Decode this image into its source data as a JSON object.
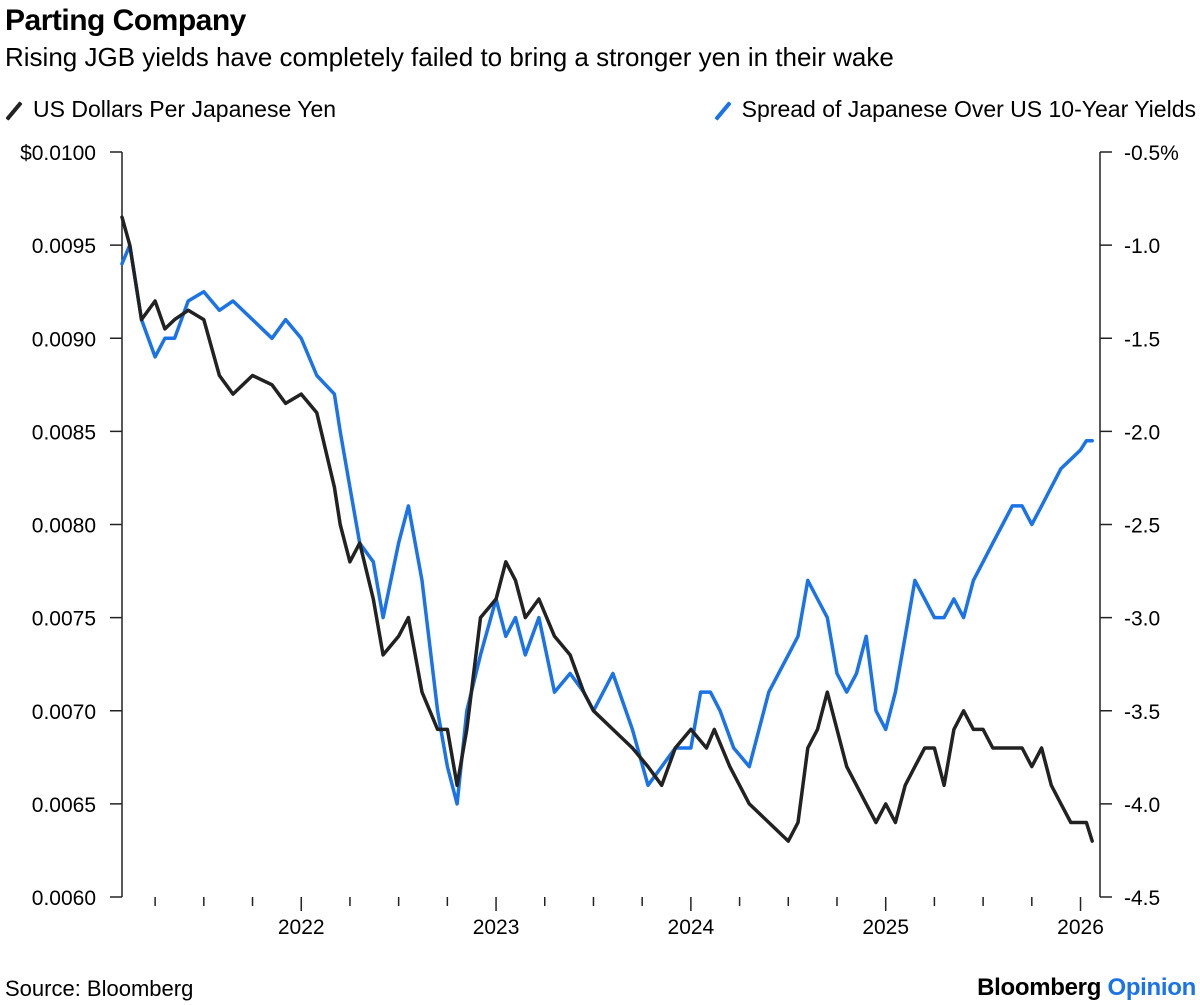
{
  "header": {
    "title": "Parting Company",
    "subtitle": "Rising JGB yields have completely failed to bring a stronger yen in their wake"
  },
  "footer": {
    "source": "Source: Bloomberg",
    "brand_main": "Bloomberg",
    "brand_accent": "Opinion"
  },
  "colors": {
    "series_left": "#222222",
    "series_right": "#1a73e8",
    "axis": "#222222"
  },
  "chart_data": {
    "type": "line",
    "title": "Parting Company",
    "subtitle": "Rising JGB yields have completely failed to bring a stronger yen in their wake",
    "x_domain": [
      2021.08,
      2026.1
    ],
    "x_ticks": [
      2022,
      2023,
      2024,
      2025,
      2026
    ],
    "x_tick_labels": [
      "2022",
      "2023",
      "2024",
      "2025",
      "2026"
    ],
    "x_minor_ticks": [
      2021.25,
      2021.5,
      2021.75,
      2022.25,
      2022.5,
      2022.75,
      2023.25,
      2023.5,
      2023.75,
      2024.25,
      2024.5,
      2024.75,
      2025.25,
      2025.5,
      2025.75
    ],
    "y_left": {
      "label": "US Dollars Per Japanese Yen",
      "range": [
        0.006,
        0.01
      ],
      "ticks": [
        0.006,
        0.0065,
        0.007,
        0.0075,
        0.008,
        0.0085,
        0.009,
        0.0095,
        0.01
      ],
      "tick_labels": [
        "0.0060",
        "0.0065",
        "0.0070",
        "0.0075",
        "0.0080",
        "0.0085",
        "0.0090",
        "0.0095",
        "$0.0100"
      ]
    },
    "y_right": {
      "label": "Spread of Japanese Over US 10-Year Yields",
      "range": [
        -4.5,
        -0.5
      ],
      "ticks": [
        -4.5,
        -4.0,
        -3.5,
        -3.0,
        -2.5,
        -2.0,
        -1.5,
        -1.0,
        -0.5
      ],
      "tick_labels": [
        "-4.5",
        "-4.0",
        "-3.5",
        "-3.0",
        "-2.5",
        "-2.0",
        "-1.5",
        "-1.0",
        "-0.5%"
      ]
    },
    "series": [
      {
        "name": "US Dollars Per Japanese Yen",
        "axis": "left",
        "color": "#222222",
        "x": [
          2021.08,
          2021.12,
          2021.18,
          2021.25,
          2021.3,
          2021.35,
          2021.42,
          2021.5,
          2021.58,
          2021.65,
          2021.75,
          2021.85,
          2021.92,
          2022.0,
          2022.08,
          2022.17,
          2022.2,
          2022.25,
          2022.3,
          2022.37,
          2022.42,
          2022.5,
          2022.55,
          2022.62,
          2022.7,
          2022.75,
          2022.8,
          2022.85,
          2022.92,
          2023.0,
          2023.05,
          2023.1,
          2023.15,
          2023.22,
          2023.3,
          2023.38,
          2023.45,
          2023.5,
          2023.6,
          2023.7,
          2023.78,
          2023.85,
          2023.92,
          2024.0,
          2024.08,
          2024.12,
          2024.2,
          2024.3,
          2024.4,
          2024.5,
          2024.55,
          2024.6,
          2024.65,
          2024.7,
          2024.75,
          2024.8,
          2024.85,
          2024.9,
          2024.95,
          2025.0,
          2025.05,
          2025.1,
          2025.15,
          2025.2,
          2025.25,
          2025.3,
          2025.35,
          2025.4,
          2025.45,
          2025.5,
          2025.55,
          2025.6,
          2025.65,
          2025.7,
          2025.75,
          2025.8,
          2025.85,
          2025.9,
          2025.95,
          2026.0,
          2026.03,
          2026.06
        ],
        "values": [
          0.00965,
          0.0095,
          0.0091,
          0.0092,
          0.00905,
          0.0091,
          0.00915,
          0.0091,
          0.0088,
          0.0087,
          0.0088,
          0.00875,
          0.00865,
          0.0087,
          0.0086,
          0.0082,
          0.008,
          0.0078,
          0.0079,
          0.0076,
          0.0073,
          0.0074,
          0.0075,
          0.0071,
          0.0069,
          0.0069,
          0.0066,
          0.0069,
          0.0075,
          0.0076,
          0.0078,
          0.0077,
          0.0075,
          0.0076,
          0.0074,
          0.0073,
          0.0071,
          0.007,
          0.0069,
          0.0068,
          0.0067,
          0.0066,
          0.0068,
          0.0069,
          0.0068,
          0.0069,
          0.0067,
          0.0065,
          0.0064,
          0.0063,
          0.0064,
          0.0068,
          0.0069,
          0.0071,
          0.0069,
          0.0067,
          0.0066,
          0.0065,
          0.0064,
          0.0065,
          0.0064,
          0.0066,
          0.0067,
          0.0068,
          0.0068,
          0.0066,
          0.0069,
          0.007,
          0.0069,
          0.0069,
          0.0068,
          0.0068,
          0.0068,
          0.0068,
          0.0067,
          0.0068,
          0.0066,
          0.0065,
          0.0064,
          0.0064,
          0.0064,
          0.0063
        ]
      },
      {
        "name": "Spread of Japanese Over US 10-Year Yields",
        "axis": "right",
        "color": "#1a73e8",
        "x": [
          2021.08,
          2021.12,
          2021.18,
          2021.25,
          2021.3,
          2021.35,
          2021.42,
          2021.5,
          2021.58,
          2021.65,
          2021.75,
          2021.85,
          2021.92,
          2022.0,
          2022.08,
          2022.17,
          2022.2,
          2022.25,
          2022.3,
          2022.37,
          2022.42,
          2022.5,
          2022.55,
          2022.62,
          2022.7,
          2022.75,
          2022.8,
          2022.85,
          2022.92,
          2023.0,
          2023.05,
          2023.1,
          2023.15,
          2023.22,
          2023.3,
          2023.38,
          2023.45,
          2023.5,
          2023.6,
          2023.7,
          2023.78,
          2023.85,
          2023.92,
          2024.0,
          2024.05,
          2024.1,
          2024.15,
          2024.22,
          2024.3,
          2024.4,
          2024.5,
          2024.55,
          2024.6,
          2024.65,
          2024.7,
          2024.75,
          2024.8,
          2024.85,
          2024.9,
          2024.95,
          2025.0,
          2025.05,
          2025.1,
          2025.15,
          2025.2,
          2025.25,
          2025.3,
          2025.35,
          2025.4,
          2025.45,
          2025.5,
          2025.55,
          2025.6,
          2025.65,
          2025.7,
          2025.75,
          2025.8,
          2025.85,
          2025.9,
          2025.95,
          2026.0,
          2026.03,
          2026.06
        ],
        "values": [
          -1.1,
          -1.0,
          -1.4,
          -1.6,
          -1.5,
          -1.5,
          -1.3,
          -1.25,
          -1.35,
          -1.3,
          -1.4,
          -1.5,
          -1.4,
          -1.5,
          -1.7,
          -1.8,
          -2.0,
          -2.3,
          -2.6,
          -2.7,
          -3.0,
          -2.6,
          -2.4,
          -2.8,
          -3.5,
          -3.8,
          -4.0,
          -3.5,
          -3.2,
          -2.9,
          -3.1,
          -3.0,
          -3.2,
          -3.0,
          -3.4,
          -3.3,
          -3.4,
          -3.5,
          -3.3,
          -3.6,
          -3.9,
          -3.8,
          -3.7,
          -3.7,
          -3.4,
          -3.4,
          -3.5,
          -3.7,
          -3.8,
          -3.4,
          -3.2,
          -3.1,
          -2.8,
          -2.9,
          -3.0,
          -3.3,
          -3.4,
          -3.3,
          -3.1,
          -3.5,
          -3.6,
          -3.4,
          -3.1,
          -2.8,
          -2.9,
          -3.0,
          -3.0,
          -2.9,
          -3.0,
          -2.8,
          -2.7,
          -2.6,
          -2.5,
          -2.4,
          -2.4,
          -2.5,
          -2.4,
          -2.3,
          -2.2,
          -2.15,
          -2.1,
          -2.05,
          -2.05
        ]
      }
    ]
  }
}
